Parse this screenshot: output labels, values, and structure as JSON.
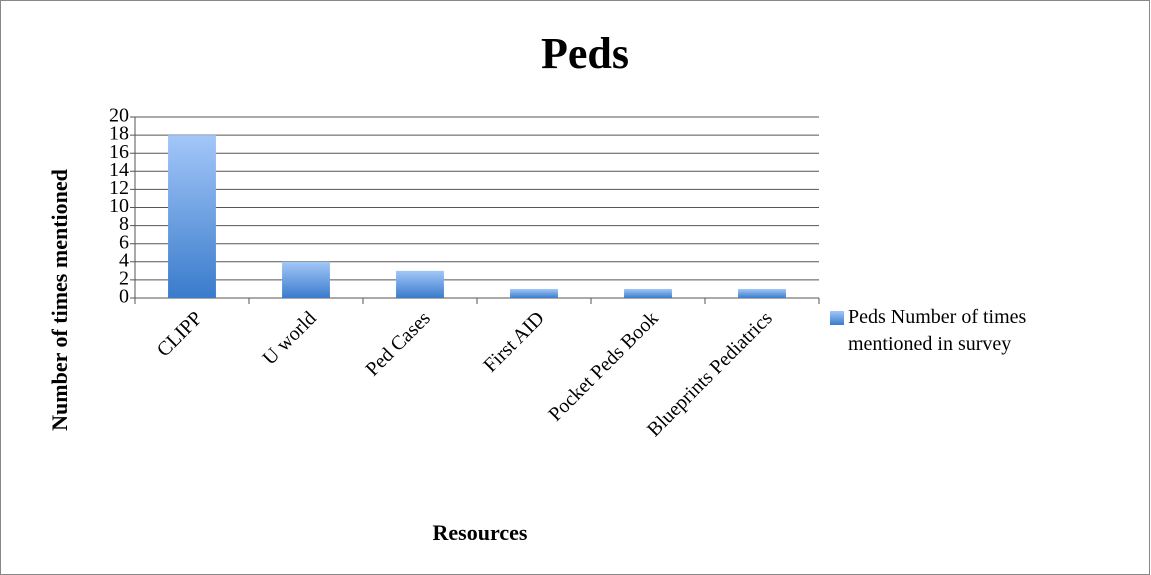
{
  "chart_data": {
    "type": "bar",
    "title": "Peds",
    "categories": [
      "CLIPP",
      "U world",
      "Ped Cases",
      "First AID",
      "Pocket Peds Book",
      "Blueprints Pediatrics"
    ],
    "series": [
      {
        "name": "Peds Number of times mentioned in survey",
        "color": "#5b93dd",
        "values": [
          18,
          4,
          3,
          1,
          1,
          1
        ]
      }
    ],
    "x_label": "Resources",
    "y_label": "Number of times mentioned",
    "ylim": [
      0,
      20
    ],
    "yticks": [
      0,
      2,
      4,
      6,
      8,
      10,
      12,
      14,
      16,
      18,
      20
    ],
    "grid": true,
    "legend": "right"
  }
}
